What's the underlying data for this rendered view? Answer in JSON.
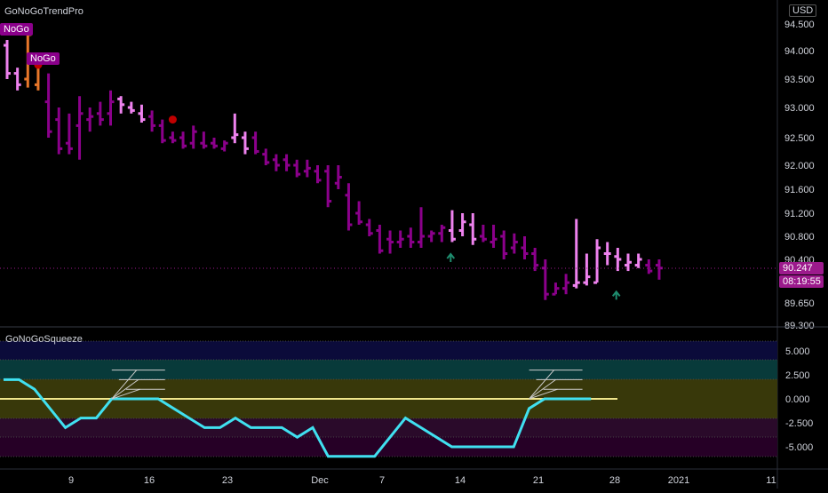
{
  "main_pane": {
    "indicator": "GoNoGoTrendPro",
    "currency": "USD",
    "price_badge": "90.247",
    "countdown_badge": "08:19:55",
    "nogo_labels": [
      "NoGo",
      "NoGo"
    ],
    "colors": {
      "strong_nogo": "#8b008b",
      "weak_nogo": "#ee82ee",
      "transition": "#e8772a",
      "dot": "#c00000",
      "arrow": "#1e8c6e"
    }
  },
  "squeeze_pane": {
    "indicator": "GoNoGoSqueeze",
    "line_color": "#40e0f0",
    "zero_line_color": "#f0e68c",
    "bands": [
      "#0b0b3a",
      "#083a3a",
      "#38380a",
      "#2a0a2a",
      "#260026"
    ]
  },
  "chart_data": [
    {
      "type": "ohlc",
      "title": "GoNoGoTrendPro",
      "y_ticks": [
        "94.500",
        "94.000",
        "93.500",
        "93.000",
        "92.500",
        "92.000",
        "91.600",
        "91.200",
        "90.800",
        "90.400",
        "89.650",
        "89.300"
      ],
      "ylim": [
        89.3,
        94.5
      ],
      "last_price": 90.247,
      "x_labels": [
        "9",
        "16",
        "23",
        "Dec",
        "7",
        "14",
        "21",
        "28",
        "2021",
        "11"
      ],
      "bars": [
        {
          "o": 94.1,
          "h": 94.2,
          "l": 93.5,
          "c": 93.6,
          "color": "weak"
        },
        {
          "o": 93.6,
          "h": 93.7,
          "l": 93.3,
          "c": 93.4,
          "color": "weak"
        },
        {
          "o": 93.5,
          "h": 94.35,
          "l": 93.35,
          "c": 94.3,
          "color": "transition"
        },
        {
          "o": 93.4,
          "h": 93.9,
          "l": 93.3,
          "c": 93.8,
          "color": "transition"
        },
        {
          "o": 93.1,
          "h": 93.6,
          "l": 92.5,
          "c": 92.6,
          "color": "strong"
        },
        {
          "o": 92.8,
          "h": 93.0,
          "l": 92.2,
          "c": 92.3,
          "color": "strong"
        },
        {
          "o": 92.4,
          "h": 92.9,
          "l": 92.2,
          "c": 92.3,
          "color": "strong"
        },
        {
          "o": 92.7,
          "h": 93.2,
          "l": 92.1,
          "c": 92.9,
          "color": "strong"
        },
        {
          "o": 92.8,
          "h": 93.0,
          "l": 92.6,
          "c": 92.85,
          "color": "strong"
        },
        {
          "o": 92.9,
          "h": 93.1,
          "l": 92.7,
          "c": 92.8,
          "color": "strong"
        },
        {
          "o": 92.9,
          "h": 93.3,
          "l": 92.7,
          "c": 93.1,
          "color": "strong"
        },
        {
          "o": 93.15,
          "h": 93.2,
          "l": 92.9,
          "c": 93.05,
          "color": "weak"
        },
        {
          "o": 93.0,
          "h": 93.1,
          "l": 92.9,
          "c": 92.95,
          "color": "weak"
        },
        {
          "o": 92.9,
          "h": 93.05,
          "l": 92.75,
          "c": 92.8,
          "color": "weak"
        },
        {
          "o": 92.85,
          "h": 92.95,
          "l": 92.6,
          "c": 92.7,
          "color": "strong"
        },
        {
          "o": 92.7,
          "h": 92.8,
          "l": 92.4,
          "c": 92.45,
          "color": "strong"
        },
        {
          "o": 92.5,
          "h": 92.6,
          "l": 92.4,
          "c": 92.45,
          "color": "strong"
        },
        {
          "o": 92.5,
          "h": 92.6,
          "l": 92.3,
          "c": 92.35,
          "color": "strong"
        },
        {
          "o": 92.4,
          "h": 92.7,
          "l": 92.3,
          "c": 92.6,
          "color": "strong"
        },
        {
          "o": 92.4,
          "h": 92.6,
          "l": 92.3,
          "c": 92.35,
          "color": "strong"
        },
        {
          "o": 92.4,
          "h": 92.5,
          "l": 92.3,
          "c": 92.35,
          "color": "strong"
        },
        {
          "o": 92.3,
          "h": 92.45,
          "l": 92.25,
          "c": 92.4,
          "color": "strong"
        },
        {
          "o": 92.5,
          "h": 92.9,
          "l": 92.4,
          "c": 92.55,
          "color": "weak"
        },
        {
          "o": 92.5,
          "h": 92.6,
          "l": 92.2,
          "c": 92.3,
          "color": "weak"
        },
        {
          "o": 92.5,
          "h": 92.6,
          "l": 92.2,
          "c": 92.25,
          "color": "strong"
        },
        {
          "o": 92.2,
          "h": 92.3,
          "l": 92.0,
          "c": 92.05,
          "color": "strong"
        },
        {
          "o": 92.1,
          "h": 92.2,
          "l": 91.9,
          "c": 92.0,
          "color": "strong"
        },
        {
          "o": 92.1,
          "h": 92.2,
          "l": 91.9,
          "c": 92.0,
          "color": "strong"
        },
        {
          "o": 92.0,
          "h": 92.1,
          "l": 91.8,
          "c": 91.85,
          "color": "strong"
        },
        {
          "o": 91.9,
          "h": 92.1,
          "l": 91.8,
          "c": 91.95,
          "color": "strong"
        },
        {
          "o": 91.9,
          "h": 92.0,
          "l": 91.7,
          "c": 91.75,
          "color": "strong"
        },
        {
          "o": 91.9,
          "h": 92.0,
          "l": 91.3,
          "c": 91.4,
          "color": "strong"
        },
        {
          "o": 91.7,
          "h": 92.0,
          "l": 91.6,
          "c": 91.8,
          "color": "strong"
        },
        {
          "o": 91.5,
          "h": 91.7,
          "l": 90.9,
          "c": 91.0,
          "color": "strong"
        },
        {
          "o": 91.2,
          "h": 91.4,
          "l": 91.0,
          "c": 91.05,
          "color": "strong"
        },
        {
          "o": 91.0,
          "h": 91.1,
          "l": 90.8,
          "c": 90.85,
          "color": "strong"
        },
        {
          "o": 90.9,
          "h": 91.0,
          "l": 90.5,
          "c": 90.55,
          "color": "strong"
        },
        {
          "o": 90.75,
          "h": 90.9,
          "l": 90.5,
          "c": 90.7,
          "color": "strong"
        },
        {
          "o": 90.7,
          "h": 90.9,
          "l": 90.6,
          "c": 90.75,
          "color": "strong"
        },
        {
          "o": 90.8,
          "h": 90.95,
          "l": 90.6,
          "c": 90.7,
          "color": "strong"
        },
        {
          "o": 90.7,
          "h": 91.3,
          "l": 90.6,
          "c": 90.8,
          "color": "strong"
        },
        {
          "o": 90.8,
          "h": 90.9,
          "l": 90.7,
          "c": 90.85,
          "color": "strong"
        },
        {
          "o": 90.85,
          "h": 91.0,
          "l": 90.7,
          "c": 90.95,
          "color": "strong"
        },
        {
          "o": 90.9,
          "h": 91.25,
          "l": 90.7,
          "c": 90.75,
          "color": "weak"
        },
        {
          "o": 90.9,
          "h": 91.2,
          "l": 90.8,
          "c": 91.05,
          "color": "weak"
        },
        {
          "o": 91.0,
          "h": 91.2,
          "l": 90.65,
          "c": 90.75,
          "color": "weak"
        },
        {
          "o": 90.8,
          "h": 91.0,
          "l": 90.7,
          "c": 90.75,
          "color": "strong"
        },
        {
          "o": 90.7,
          "h": 91.0,
          "l": 90.6,
          "c": 90.75,
          "color": "strong"
        },
        {
          "o": 90.8,
          "h": 90.9,
          "l": 90.4,
          "c": 90.5,
          "color": "strong"
        },
        {
          "o": 90.6,
          "h": 90.85,
          "l": 90.5,
          "c": 90.7,
          "color": "strong"
        },
        {
          "o": 90.6,
          "h": 90.8,
          "l": 90.4,
          "c": 90.5,
          "color": "strong"
        },
        {
          "o": 90.5,
          "h": 90.6,
          "l": 90.2,
          "c": 90.3,
          "color": "strong"
        },
        {
          "o": 90.25,
          "h": 90.4,
          "l": 89.7,
          "c": 89.8,
          "color": "strong"
        },
        {
          "o": 89.8,
          "h": 90.0,
          "l": 89.8,
          "c": 89.9,
          "color": "strong"
        },
        {
          "o": 89.9,
          "h": 90.15,
          "l": 89.8,
          "c": 90.0,
          "color": "strong"
        },
        {
          "o": 89.95,
          "h": 91.1,
          "l": 89.9,
          "c": 90.0,
          "color": "weak"
        },
        {
          "o": 90.0,
          "h": 90.5,
          "l": 89.95,
          "c": 90.1,
          "color": "weak"
        },
        {
          "o": 90.0,
          "h": 90.75,
          "l": 90.0,
          "c": 90.6,
          "color": "weak"
        },
        {
          "o": 90.5,
          "h": 90.7,
          "l": 90.3,
          "c": 90.5,
          "color": "weak"
        },
        {
          "o": 90.45,
          "h": 90.6,
          "l": 90.2,
          "c": 90.4,
          "color": "weak"
        },
        {
          "o": 90.3,
          "h": 90.5,
          "l": 90.2,
          "c": 90.35,
          "color": "weak"
        },
        {
          "o": 90.3,
          "h": 90.5,
          "l": 90.25,
          "c": 90.4,
          "color": "weak"
        },
        {
          "o": 90.3,
          "h": 90.4,
          "l": 90.15,
          "c": 90.2,
          "color": "strong"
        },
        {
          "o": 90.3,
          "h": 90.4,
          "l": 90.05,
          "c": 90.25,
          "color": "strong"
        }
      ],
      "dots": [
        {
          "bar": 3,
          "price": 93.75
        },
        {
          "bar": 16,
          "price": 92.8
        }
      ],
      "arrows": [
        {
          "bar": 42,
          "price": 90.6
        },
        {
          "bar": 58,
          "price": 89.95
        }
      ]
    },
    {
      "type": "line",
      "title": "GoNoGoSqueeze",
      "y_ticks": [
        "5.000",
        "2.500",
        "0.000",
        "-2.500",
        "-5.000"
      ],
      "ylim": [
        -7.5,
        7.5
      ],
      "series": [
        {
          "values": [
            2,
            2,
            1,
            -1,
            -3,
            -2,
            -2,
            0,
            0,
            0,
            0,
            -1,
            -2,
            -3,
            -3,
            -2,
            -3,
            -3,
            -3,
            -4,
            -3,
            -6,
            -6,
            -6,
            -6,
            -4,
            -2,
            -3,
            -4,
            -5,
            -5,
            -5,
            -5,
            -5,
            -1,
            0,
            0,
            0,
            0
          ]
        }
      ],
      "ladders": [
        {
          "start": 7,
          "peak": 3,
          "width": 3
        },
        {
          "start": 34,
          "peak": 3,
          "width": 3
        }
      ]
    }
  ]
}
